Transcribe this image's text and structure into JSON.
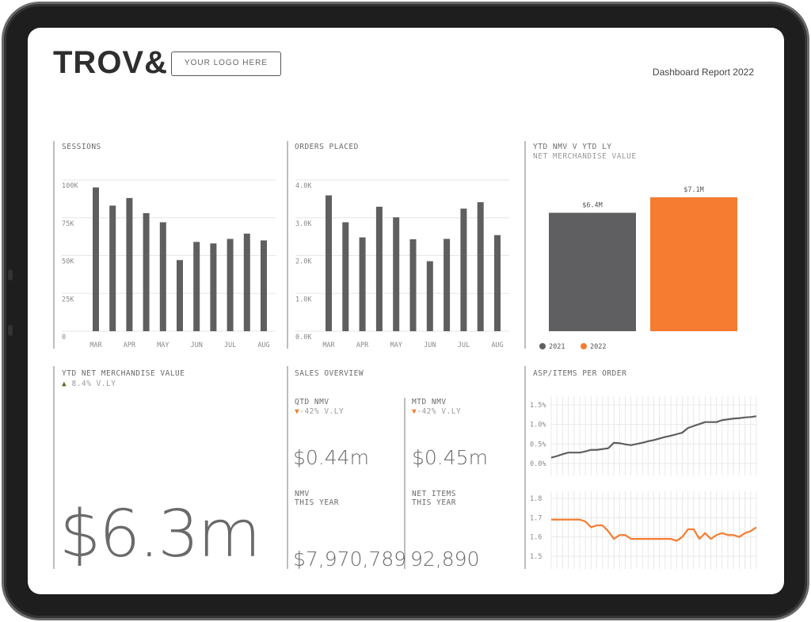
{
  "header": {
    "brand": "TROV&",
    "logo_placeholder": "YOUR LOGO HERE",
    "report_title": "Dashboard Report 2022"
  },
  "colors": {
    "gray": "#5f5f61",
    "orange": "#f57c30",
    "accent_up": "#5a6b2a"
  },
  "sessions": {
    "title": "SESSIONS"
  },
  "orders": {
    "title": "ORDERS PLACED"
  },
  "nmv_compare": {
    "title": "YTD NMV V YTD LY",
    "subtitle": "NET MERCHANDISE VALUE"
  },
  "ytd_nmv": {
    "title": "YTD NET MERCHANDISE VALUE",
    "change": "8.4% V.LY",
    "change_icon": "triangle-up",
    "value": "$6.3m"
  },
  "sales_overview": {
    "title": "SALES OVERVIEW",
    "qtd": {
      "label": "QTD NMV",
      "change": "-42% V.LY",
      "value": "$0.44m"
    },
    "mtd": {
      "label": "MTD NMV",
      "change": "-42% V.LY",
      "value": "$0.45m"
    },
    "nmv": {
      "label1": "NMV",
      "label2": "THIS YEAR",
      "value": "$7,970,789"
    },
    "items": {
      "label1": "NET ITEMS",
      "label2": "THIS YEAR",
      "value": "92,890"
    }
  },
  "asp": {
    "title": "ASP/ITEMS PER ORDER"
  },
  "chart_data": [
    {
      "type": "bar",
      "title": "SESSIONS",
      "ylim": [
        0,
        100000
      ],
      "yticks": [
        "0",
        "25K",
        "50K",
        "75K",
        "100K"
      ],
      "xticks": [
        "MAR",
        "APR",
        "MAY",
        "JUN",
        "JUL",
        "AUG"
      ],
      "values": [
        95000,
        83000,
        88000,
        78000,
        72000,
        47000,
        59000,
        58000,
        61000,
        64500,
        60000
      ],
      "color": "#5f5f61",
      "grid": true
    },
    {
      "type": "bar",
      "title": "ORDERS PLACED",
      "ylim": [
        0,
        4000
      ],
      "yticks": [
        "0.0K",
        "1.0K",
        "2.0K",
        "3.0K",
        "4.0K"
      ],
      "xticks": [
        "MAR",
        "APR",
        "MAY",
        "JUN",
        "JUL",
        "AUG"
      ],
      "values": [
        3590,
        2880,
        2480,
        3290,
        3010,
        2430,
        1850,
        2440,
        3240,
        3410,
        2540
      ],
      "color": "#5f5f61",
      "grid": true
    },
    {
      "type": "bar",
      "title": "YTD NMV V YTD LY",
      "categories": [
        "2021",
        "2022"
      ],
      "values": [
        6.4,
        7.1
      ],
      "labels": [
        "$6.4M",
        "$7.1M"
      ],
      "colors": [
        "#5f5f61",
        "#f57c30"
      ],
      "legend": "bottom-left"
    },
    {
      "type": "line",
      "ylim": [
        0,
        1.5
      ],
      "yticks": [
        "0.0%",
        "0.5%",
        "1.0%",
        "1.5%"
      ],
      "color": "#5f5f61",
      "grid": true,
      "values": [
        0.15,
        0.19,
        0.24,
        0.28,
        0.28,
        0.28,
        0.31,
        0.35,
        0.35,
        0.37,
        0.39,
        0.53,
        0.52,
        0.49,
        0.47,
        0.5,
        0.53,
        0.57,
        0.6,
        0.64,
        0.68,
        0.71,
        0.75,
        0.79,
        0.91,
        0.96,
        1.01,
        1.06,
        1.06,
        1.06,
        1.11,
        1.13,
        1.15,
        1.16,
        1.18,
        1.19,
        1.21
      ]
    },
    {
      "type": "line",
      "ylim": [
        1.5,
        1.8
      ],
      "yticks": [
        "1.5",
        "1.6",
        "1.7",
        "1.8"
      ],
      "color": "#f57c30",
      "grid": true,
      "values": [
        1.69,
        1.69,
        1.69,
        1.69,
        1.69,
        1.69,
        1.68,
        1.65,
        1.66,
        1.66,
        1.63,
        1.59,
        1.61,
        1.61,
        1.59,
        1.59,
        1.59,
        1.59,
        1.59,
        1.59,
        1.59,
        1.59,
        1.58,
        1.6,
        1.64,
        1.64,
        1.59,
        1.62,
        1.59,
        1.61,
        1.62,
        1.61,
        1.61,
        1.6,
        1.62,
        1.63,
        1.65
      ]
    }
  ]
}
